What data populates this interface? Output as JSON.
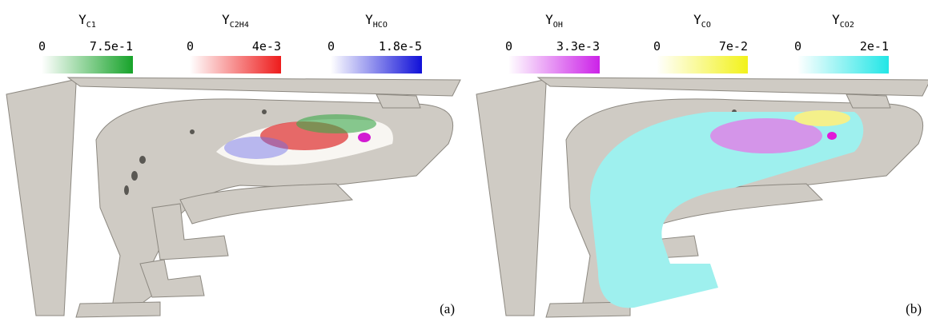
{
  "panels": [
    {
      "label": "(a)",
      "colorbars": [
        {
          "symbol": "Y",
          "subscript": "C1",
          "min": "0",
          "max": "7.5e-1",
          "color": "#17a32a"
        },
        {
          "symbol": "Y",
          "subscript": "C2H4",
          "min": "0",
          "max": "4e-3",
          "color": "#ee1c1c"
        },
        {
          "symbol": "Y",
          "subscript": "HCO",
          "min": "0",
          "max": "1.8e-5",
          "color": "#1010d8"
        }
      ]
    },
    {
      "label": "(b)",
      "colorbars": [
        {
          "symbol": "Y",
          "subscript": "OH",
          "min": "0",
          "max": "3.3e-3",
          "color": "#cc22e8"
        },
        {
          "symbol": "Y",
          "subscript": "CO",
          "min": "0",
          "max": "7e-2",
          "color": "#f2f21a"
        },
        {
          "symbol": "Y",
          "subscript": "CO2",
          "min": "0",
          "max": "2e-1",
          "color": "#22e6e6"
        }
      ]
    }
  ]
}
